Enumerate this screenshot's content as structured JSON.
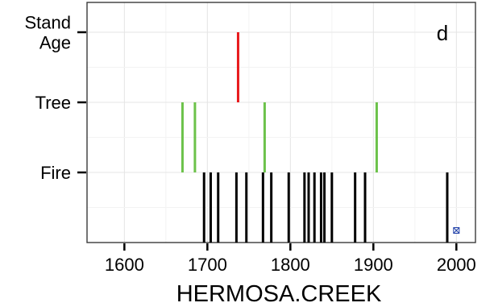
{
  "chart_data": {
    "type": "event-plot",
    "panel_label": "d",
    "xlabel": "HERMOSA.CREEK",
    "xlim": [
      1555,
      2023
    ],
    "x_ticks": [
      1600,
      1700,
      1800,
      1900,
      2000
    ],
    "y_categories": [
      {
        "label_lines": [
          "Stand",
          "Age"
        ]
      },
      {
        "label_lines": [
          "Tree"
        ]
      },
      {
        "label_lines": [
          "Fire"
        ]
      }
    ],
    "series": {
      "stand_age": {
        "years": [
          1737
        ],
        "color": "#e8191c"
      },
      "tree": {
        "years": [
          1670,
          1685,
          1769,
          1904
        ],
        "color": "#6cc24a"
      },
      "fire": {
        "years": [
          1696,
          1704,
          1713,
          1735,
          1747,
          1767,
          1777,
          1798,
          1817,
          1822,
          1829,
          1837,
          1841,
          1850,
          1878,
          1890,
          1989
        ],
        "color": "#000000"
      }
    },
    "end_marker": {
      "year": 2000,
      "symbol": "boxed-x",
      "color": "#1f3fa8"
    },
    "grid": true
  }
}
